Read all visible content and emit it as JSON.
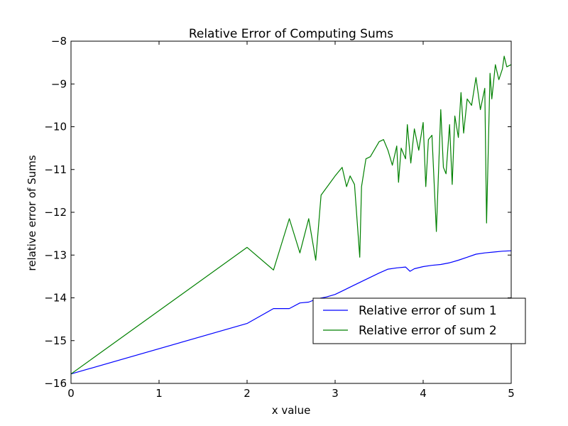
{
  "chart_data": {
    "type": "line",
    "title": "Relative Error of Computing Sums",
    "xlabel": "x value",
    "ylabel": "relative error of Sums",
    "xlim": [
      0,
      5
    ],
    "ylim": [
      -16,
      -8
    ],
    "xticks": [
      0,
      1,
      2,
      3,
      4,
      5
    ],
    "xtick_labels": [
      "0",
      "1",
      "2",
      "3",
      "4",
      "5"
    ],
    "yticks": [
      -16,
      -15,
      -14,
      -13,
      -12,
      -11,
      -10,
      -9,
      -8
    ],
    "ytick_labels": [
      "−16",
      "−15",
      "−14",
      "−13",
      "−12",
      "−11",
      "−10",
      "−9",
      "−8"
    ],
    "grid": false,
    "legend_position": "lower-right",
    "series": [
      {
        "name": "Relative error of sum 1",
        "color": "#0000ff",
        "x": [
          0.0,
          2.0,
          2.3,
          2.48,
          2.6,
          2.7,
          2.8,
          2.9,
          3.0,
          3.1,
          3.2,
          3.3,
          3.4,
          3.5,
          3.6,
          3.7,
          3.8,
          3.85,
          3.9,
          4.0,
          4.1,
          4.2,
          4.3,
          4.4,
          4.5,
          4.6,
          4.7,
          4.8,
          4.9,
          5.0
        ],
        "y": [
          -15.78,
          -14.6,
          -14.25,
          -14.25,
          -14.12,
          -14.1,
          -14.02,
          -13.98,
          -13.92,
          -13.82,
          -13.72,
          -13.62,
          -13.52,
          -13.42,
          -13.33,
          -13.3,
          -13.28,
          -13.38,
          -13.32,
          -13.27,
          -13.24,
          -13.22,
          -13.18,
          -13.12,
          -13.05,
          -12.98,
          -12.95,
          -12.93,
          -12.91,
          -12.9
        ]
      },
      {
        "name": "Relative error of sum 2",
        "color": "#008000",
        "x": [
          0.0,
          2.0,
          2.3,
          2.48,
          2.6,
          2.7,
          2.78,
          2.84,
          3.0,
          3.08,
          3.13,
          3.17,
          3.22,
          3.28,
          3.3,
          3.35,
          3.4,
          3.5,
          3.55,
          3.6,
          3.65,
          3.7,
          3.72,
          3.75,
          3.8,
          3.82,
          3.86,
          3.9,
          3.95,
          4.0,
          4.03,
          4.06,
          4.1,
          4.15,
          4.2,
          4.23,
          4.26,
          4.3,
          4.33,
          4.36,
          4.4,
          4.43,
          4.46,
          4.5,
          4.55,
          4.6,
          4.65,
          4.7,
          4.72,
          4.76,
          4.78,
          4.82,
          4.86,
          4.9,
          4.92,
          4.95,
          5.0
        ],
        "y": [
          -15.78,
          -12.82,
          -13.35,
          -12.15,
          -12.95,
          -12.15,
          -13.12,
          -11.6,
          -11.15,
          -10.95,
          -11.4,
          -11.15,
          -11.35,
          -13.05,
          -11.4,
          -10.75,
          -10.7,
          -10.35,
          -10.3,
          -10.55,
          -10.9,
          -10.45,
          -11.3,
          -10.5,
          -10.75,
          -9.95,
          -10.85,
          -10.05,
          -10.55,
          -9.9,
          -11.4,
          -10.3,
          -10.2,
          -12.45,
          -9.6,
          -10.95,
          -11.1,
          -9.95,
          -11.35,
          -9.75,
          -10.25,
          -9.2,
          -10.15,
          -9.35,
          -9.5,
          -8.85,
          -9.6,
          -9.1,
          -12.25,
          -8.75,
          -9.35,
          -8.55,
          -8.9,
          -8.65,
          -8.35,
          -8.6,
          -8.55
        ]
      }
    ]
  }
}
